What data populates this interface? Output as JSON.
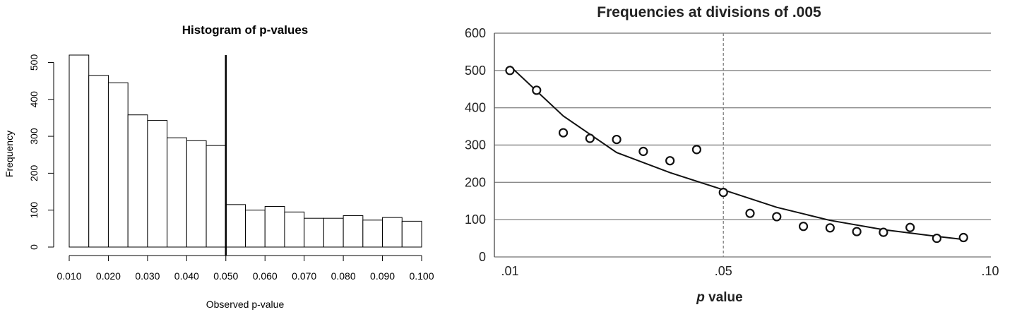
{
  "chart_data": [
    {
      "type": "bar",
      "title": "Histogram of p-values",
      "xlabel": "Observed p-value",
      "ylabel": "Frequency",
      "bin_edges": [
        0.01,
        0.015,
        0.02,
        0.025,
        0.03,
        0.035,
        0.04,
        0.045,
        0.05,
        0.055,
        0.06,
        0.065,
        0.07,
        0.075,
        0.08,
        0.085,
        0.09,
        0.095,
        0.1
      ],
      "values": [
        520,
        465,
        445,
        358,
        343,
        296,
        288,
        275,
        115,
        100,
        110,
        95,
        78,
        78,
        85,
        73,
        80,
        70
      ],
      "x_ticks": [
        "0.010",
        "0.020",
        "0.030",
        "0.040",
        "0.050",
        "0.060",
        "0.070",
        "0.080",
        "0.090",
        "0.100"
      ],
      "y_ticks": [
        "0",
        "100",
        "200",
        "300",
        "400",
        "500"
      ],
      "xlim": [
        0.01,
        0.1
      ],
      "ylim": [
        0,
        520
      ],
      "reference_line": 0.05,
      "grid": false
    },
    {
      "type": "scatter",
      "title": "Frequencies at divisions of .005",
      "xlabel_italic": "p",
      "xlabel_rest": " value",
      "x_ticks": [
        ".01",
        ".05",
        ".10"
      ],
      "y_ticks": [
        "0",
        "100",
        "200",
        "300",
        "400",
        "500",
        "600"
      ],
      "xlim": [
        0.01,
        0.1
      ],
      "ylim": [
        0,
        600
      ],
      "grid": true,
      "reference_line": 0.05,
      "points": [
        {
          "x": 0.01,
          "y": 500
        },
        {
          "x": 0.015,
          "y": 447
        },
        {
          "x": 0.02,
          "y": 333
        },
        {
          "x": 0.025,
          "y": 318
        },
        {
          "x": 0.03,
          "y": 315
        },
        {
          "x": 0.035,
          "y": 283
        },
        {
          "x": 0.04,
          "y": 258
        },
        {
          "x": 0.045,
          "y": 288
        },
        {
          "x": 0.05,
          "y": 173
        },
        {
          "x": 0.055,
          "y": 117
        },
        {
          "x": 0.06,
          "y": 108
        },
        {
          "x": 0.065,
          "y": 82
        },
        {
          "x": 0.07,
          "y": 78
        },
        {
          "x": 0.075,
          "y": 68
        },
        {
          "x": 0.08,
          "y": 66
        },
        {
          "x": 0.085,
          "y": 79
        },
        {
          "x": 0.09,
          "y": 50
        },
        {
          "x": 0.095,
          "y": 52
        }
      ],
      "trend": [
        {
          "x": 0.01,
          "y": 512
        },
        {
          "x": 0.02,
          "y": 378
        },
        {
          "x": 0.03,
          "y": 280
        },
        {
          "x": 0.04,
          "y": 226
        },
        {
          "x": 0.05,
          "y": 180
        },
        {
          "x": 0.06,
          "y": 133
        },
        {
          "x": 0.07,
          "y": 98
        },
        {
          "x": 0.08,
          "y": 73
        },
        {
          "x": 0.09,
          "y": 55
        },
        {
          "x": 0.095,
          "y": 47
        }
      ]
    }
  ]
}
